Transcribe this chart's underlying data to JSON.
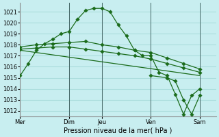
{
  "background_color": "#c8eef0",
  "grid_color": "#aadcdc",
  "line_color": "#1a6b1a",
  "marker_color": "#1a6b1a",
  "xlabel": "Pression niveau de la mer( hPa )",
  "ylim": [
    1011.5,
    1021.8
  ],
  "yticks": [
    1012,
    1013,
    1014,
    1015,
    1016,
    1017,
    1018,
    1019,
    1020,
    1021
  ],
  "xtick_labels": [
    "Mer",
    "Dim",
    "Jeu",
    "Ven",
    "Sam"
  ],
  "xtick_positions": [
    0,
    36,
    60,
    96,
    132
  ],
  "vline_positions": [
    0,
    36,
    60,
    96,
    132
  ],
  "xlim": [
    0,
    144
  ],
  "series1": {
    "x": [
      0,
      6,
      12,
      18,
      24,
      30,
      36,
      42,
      48,
      54,
      60,
      66,
      72,
      78,
      84,
      90,
      96,
      102,
      108,
      114,
      120,
      126,
      132
    ],
    "y": [
      1015.2,
      1016.3,
      1017.5,
      1018.1,
      1018.5,
      1019.0,
      1019.2,
      1020.3,
      1021.1,
      1021.3,
      1021.3,
      1021.0,
      1019.8,
      1018.8,
      1017.5,
      1017.0,
      1017.0,
      1015.5,
      1015.2,
      1013.5,
      1011.7,
      1013.4,
      1014.0
    ]
  },
  "series2": {
    "x": [
      0,
      12,
      24,
      36,
      48,
      60,
      72,
      84,
      96,
      108,
      120,
      132
    ],
    "y": [
      1017.8,
      1018.0,
      1018.1,
      1018.2,
      1018.3,
      1018.0,
      1017.8,
      1017.5,
      1017.3,
      1016.8,
      1016.3,
      1015.8
    ]
  },
  "series3": {
    "x": [
      0,
      12,
      24,
      36,
      48,
      60,
      72,
      84,
      96,
      108,
      120,
      132
    ],
    "y": [
      1017.6,
      1017.7,
      1017.8,
      1017.8,
      1017.6,
      1017.4,
      1017.2,
      1017.0,
      1016.7,
      1016.3,
      1015.9,
      1015.5
    ]
  },
  "series4": {
    "x": [
      0,
      132
    ],
    "y": [
      1017.5,
      1015.2
    ]
  },
  "series5": {
    "x": [
      96,
      108,
      114,
      120,
      126,
      132
    ],
    "y": [
      1015.2,
      1015.0,
      1014.7,
      1013.0,
      1011.7,
      1013.4
    ]
  },
  "figsize": [
    3.2,
    2.0
  ],
  "dpi": 100
}
